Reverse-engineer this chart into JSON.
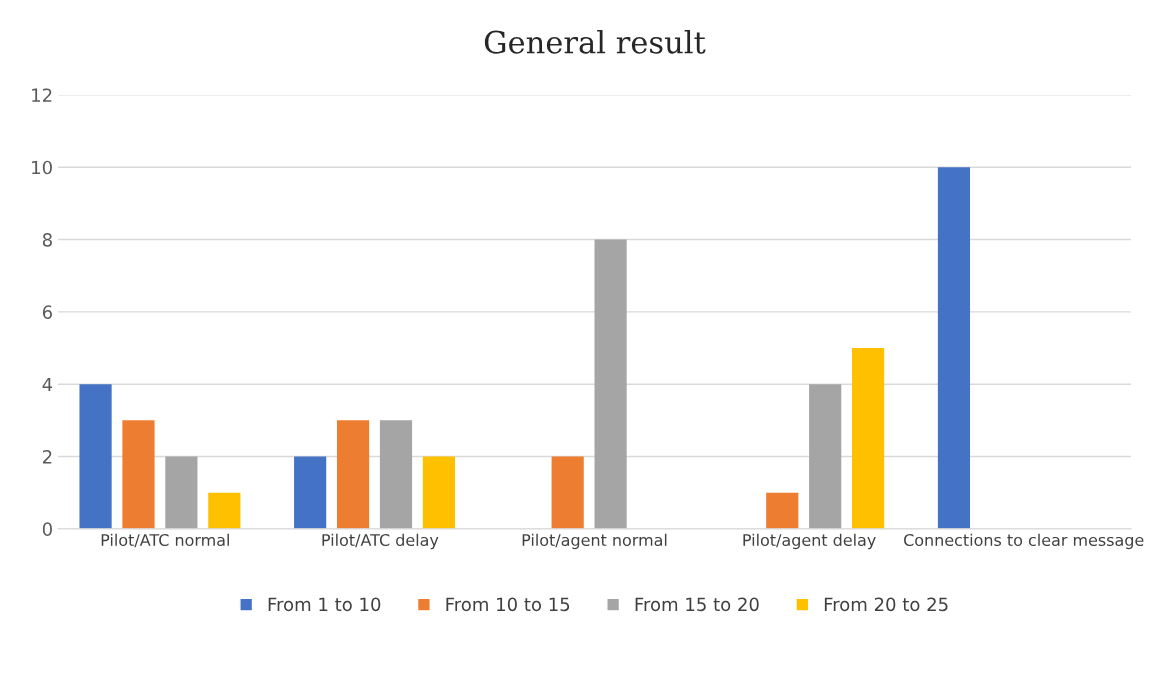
{
  "chart_data": {
    "type": "bar",
    "title": "General result",
    "categories": [
      "Pilot/ATC normal",
      "Pilot/ATC delay",
      "Pilot/agent normal",
      "Pilot/agent delay",
      "Connections to clear message"
    ],
    "series": [
      {
        "name": "From 1 to 10",
        "color": "#4472c4",
        "values": [
          4,
          2,
          null,
          null,
          10
        ]
      },
      {
        "name": "From 10 to 15",
        "color": "#ed7d31",
        "values": [
          3,
          3,
          2,
          1,
          null
        ]
      },
      {
        "name": "From 15 to 20",
        "color": "#a5a5a5",
        "values": [
          2,
          3,
          8,
          4,
          null
        ]
      },
      {
        "name": "From 20 to 25",
        "color": "#ffc000",
        "values": [
          1,
          2,
          null,
          5,
          null
        ]
      }
    ],
    "ylim": [
      0,
      12
    ],
    "yticks": [
      0,
      2,
      4,
      6,
      8,
      10,
      12
    ],
    "grid": "y",
    "legend": "bottom"
  }
}
